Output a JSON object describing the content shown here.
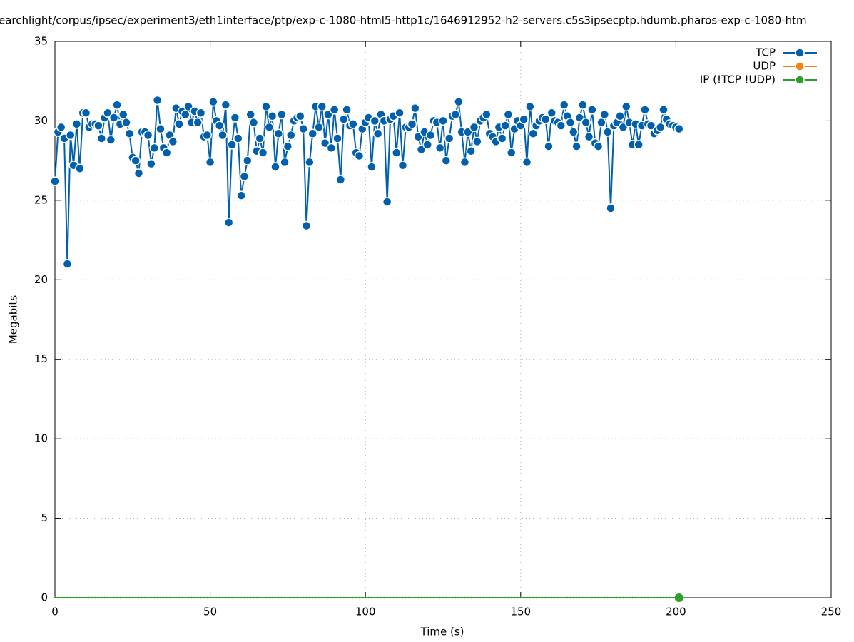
{
  "chart_data": {
    "type": "line",
    "title": "earchlight/corpus/ipsec/experiment3/eth1interface/ptp/exp-c-1080-html5-http1c/1646912952-h2-servers.c5s3ipsecptp.hdumb.pharos-exp-c-1080-htm",
    "xlabel": "Time (s)",
    "ylabel": "Megabits",
    "xlim": [
      0,
      250
    ],
    "ylim": [
      0,
      35
    ],
    "xticks": [
      0,
      50,
      100,
      150,
      200,
      250
    ],
    "yticks": [
      0,
      5,
      10,
      15,
      20,
      25,
      30,
      35
    ],
    "grid": true,
    "legend": "top-right",
    "x": [
      0,
      1,
      2,
      3,
      4,
      5,
      6,
      7,
      8,
      9,
      10,
      11,
      12,
      13,
      14,
      15,
      16,
      17,
      18,
      19,
      20,
      21,
      22,
      23,
      24,
      25,
      26,
      27,
      28,
      29,
      30,
      31,
      32,
      33,
      34,
      35,
      36,
      37,
      38,
      39,
      40,
      41,
      42,
      43,
      44,
      45,
      46,
      47,
      48,
      49,
      50,
      51,
      52,
      53,
      54,
      55,
      56,
      57,
      58,
      59,
      60,
      61,
      62,
      63,
      64,
      65,
      66,
      67,
      68,
      69,
      70,
      71,
      72,
      73,
      74,
      75,
      76,
      77,
      78,
      79,
      80,
      81,
      82,
      83,
      84,
      85,
      86,
      87,
      88,
      89,
      90,
      91,
      92,
      93,
      94,
      95,
      96,
      97,
      98,
      99,
      100,
      101,
      102,
      103,
      104,
      105,
      106,
      107,
      108,
      109,
      110,
      111,
      112,
      113,
      114,
      115,
      116,
      117,
      118,
      119,
      120,
      121,
      122,
      123,
      124,
      125,
      126,
      127,
      128,
      129,
      130,
      131,
      132,
      133,
      134,
      135,
      136,
      137,
      138,
      139,
      140,
      141,
      142,
      143,
      144,
      145,
      146,
      147,
      148,
      149,
      150,
      151,
      152,
      153,
      154,
      155,
      156,
      157,
      158,
      159,
      160,
      161,
      162,
      163,
      164,
      165,
      166,
      167,
      168,
      169,
      170,
      171,
      172,
      173,
      174,
      175,
      176,
      177,
      178,
      179,
      180,
      181,
      182,
      183,
      184,
      185,
      186,
      187,
      188,
      189,
      190,
      191,
      192,
      193,
      194,
      195,
      196,
      197,
      198,
      199,
      200,
      201
    ],
    "series": [
      {
        "name": "TCP",
        "color": "#0060ad",
        "values": [
          26.2,
          29.3,
          29.6,
          28.9,
          21.0,
          29.1,
          27.2,
          29.8,
          27.0,
          30.5,
          30.5,
          29.6,
          29.8,
          29.8,
          29.7,
          28.9,
          30.2,
          30.5,
          28.8,
          30.2,
          31.0,
          29.8,
          30.4,
          29.9,
          29.2,
          27.7,
          27.5,
          26.7,
          29.3,
          29.3,
          29.1,
          27.3,
          28.3,
          31.3,
          29.5,
          28.3,
          28.0,
          29.1,
          28.7,
          30.8,
          29.8,
          30.6,
          30.4,
          30.9,
          29.9,
          30.6,
          29.9,
          30.5,
          29.0,
          29.1,
          27.4,
          31.2,
          30.0,
          29.7,
          29.1,
          31.0,
          23.6,
          28.5,
          30.2,
          28.9,
          25.3,
          26.5,
          27.5,
          30.4,
          29.9,
          28.1,
          28.9,
          28.0,
          30.9,
          29.6,
          30.3,
          27.1,
          29.2,
          30.4,
          27.4,
          28.4,
          29.1,
          30.0,
          30.2,
          30.3,
          29.5,
          23.4,
          27.4,
          29.2,
          30.9,
          29.6,
          30.9,
          28.6,
          30.4,
          28.3,
          30.7,
          28.9,
          26.3,
          30.1,
          30.7,
          29.7,
          29.8,
          28.0,
          27.8,
          29.5,
          29.9,
          30.2,
          27.1,
          30.0,
          29.2,
          30.4,
          30.0,
          24.9,
          30.1,
          30.3,
          28.0,
          30.5,
          27.2,
          29.6,
          29.6,
          29.8,
          30.8,
          29.0,
          28.2,
          29.3,
          28.5,
          29.1,
          30.0,
          29.9,
          28.3,
          30.0,
          27.5,
          28.9,
          30.3,
          30.4,
          31.2,
          29.3,
          27.4,
          29.3,
          28.1,
          29.6,
          28.7,
          30.0,
          30.2,
          30.4,
          29.2,
          29.0,
          28.7,
          29.6,
          28.9,
          29.7,
          30.4,
          28.0,
          29.5,
          30.0,
          29.7,
          30.1,
          27.4,
          30.9,
          29.2,
          29.7,
          30.0,
          30.2,
          30.1,
          28.4,
          30.5,
          30.0,
          29.9,
          29.7,
          31.0,
          30.3,
          29.9,
          29.3,
          28.4,
          30.2,
          31.0,
          29.9,
          29.0,
          30.7,
          28.6,
          28.4,
          29.9,
          30.4,
          29.3,
          24.5,
          29.7,
          29.9,
          30.3,
          29.6,
          30.9,
          29.9,
          28.5,
          29.8,
          28.5,
          29.7,
          30.7,
          29.8,
          29.7,
          29.2,
          29.4,
          29.6,
          30.7,
          30.1,
          29.8,
          29.7,
          29.6,
          29.5
        ]
      },
      {
        "name": "UDP",
        "color": "#f5820f",
        "values": [
          0,
          0,
          0,
          0,
          0,
          0,
          0,
          0,
          0,
          0,
          0,
          0,
          0,
          0,
          0,
          0,
          0,
          0,
          0,
          0,
          0,
          0,
          0,
          0,
          0,
          0,
          0,
          0,
          0,
          0,
          0,
          0,
          0,
          0,
          0,
          0,
          0,
          0,
          0,
          0,
          0,
          0,
          0,
          0,
          0,
          0,
          0,
          0,
          0,
          0,
          0,
          0,
          0,
          0,
          0,
          0,
          0,
          0,
          0,
          0,
          0,
          0,
          0,
          0,
          0,
          0,
          0,
          0,
          0,
          0,
          0,
          0,
          0,
          0,
          0,
          0,
          0,
          0,
          0,
          0,
          0,
          0,
          0,
          0,
          0,
          0,
          0,
          0,
          0,
          0,
          0,
          0,
          0,
          0,
          0,
          0,
          0,
          0,
          0,
          0,
          0,
          0,
          0,
          0,
          0,
          0,
          0,
          0,
          0,
          0,
          0,
          0,
          0,
          0,
          0,
          0,
          0,
          0,
          0,
          0,
          0,
          0,
          0,
          0,
          0,
          0,
          0,
          0,
          0,
          0,
          0,
          0,
          0,
          0,
          0,
          0,
          0,
          0,
          0,
          0,
          0,
          0,
          0,
          0,
          0,
          0,
          0,
          0,
          0,
          0,
          0,
          0,
          0,
          0,
          0,
          0,
          0,
          0,
          0,
          0,
          0,
          0,
          0,
          0,
          0,
          0,
          0,
          0,
          0,
          0,
          0,
          0,
          0,
          0,
          0,
          0,
          0,
          0,
          0,
          0,
          0,
          0,
          0,
          0,
          0,
          0,
          0,
          0,
          0,
          0,
          0,
          0,
          0,
          0,
          0,
          0,
          0,
          0,
          0,
          0,
          0,
          0
        ]
      },
      {
        "name": "IP (!TCP  !UDP)",
        "color": "#2ca02c",
        "values": [
          0,
          0,
          0,
          0,
          0,
          0,
          0,
          0,
          0,
          0,
          0,
          0,
          0,
          0,
          0,
          0,
          0,
          0,
          0,
          0,
          0,
          0,
          0,
          0,
          0,
          0,
          0,
          0,
          0,
          0,
          0,
          0,
          0,
          0,
          0,
          0,
          0,
          0,
          0,
          0,
          0,
          0,
          0,
          0,
          0,
          0,
          0,
          0,
          0,
          0,
          0,
          0,
          0,
          0,
          0,
          0,
          0,
          0,
          0,
          0,
          0,
          0,
          0,
          0,
          0,
          0,
          0,
          0,
          0,
          0,
          0,
          0,
          0,
          0,
          0,
          0,
          0,
          0,
          0,
          0,
          0,
          0,
          0,
          0,
          0,
          0,
          0,
          0,
          0,
          0,
          0,
          0,
          0,
          0,
          0,
          0,
          0,
          0,
          0,
          0,
          0,
          0,
          0,
          0,
          0,
          0,
          0,
          0,
          0,
          0,
          0,
          0,
          0,
          0,
          0,
          0,
          0,
          0,
          0,
          0,
          0,
          0,
          0,
          0,
          0,
          0,
          0,
          0,
          0,
          0,
          0,
          0,
          0,
          0,
          0,
          0,
          0,
          0,
          0,
          0,
          0,
          0,
          0,
          0,
          0,
          0,
          0,
          0,
          0,
          0,
          0,
          0,
          0,
          0,
          0,
          0,
          0,
          0,
          0,
          0,
          0,
          0,
          0,
          0,
          0,
          0,
          0,
          0,
          0,
          0,
          0,
          0,
          0,
          0,
          0,
          0,
          0,
          0,
          0,
          0,
          0,
          0,
          0,
          0,
          0,
          0,
          0,
          0,
          0,
          0,
          0,
          0,
          0,
          0,
          0,
          0,
          0,
          0,
          0,
          0,
          0,
          0
        ]
      }
    ]
  }
}
